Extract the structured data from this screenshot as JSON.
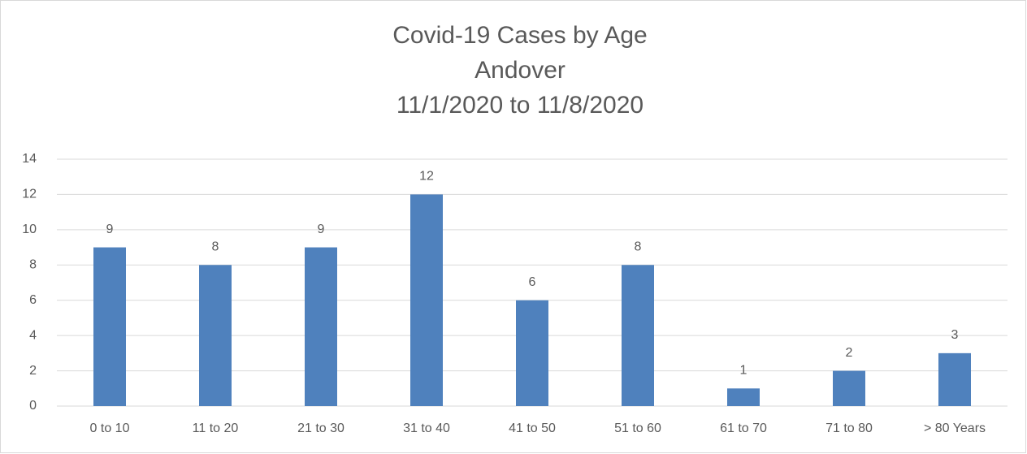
{
  "chart_data": {
    "type": "bar",
    "title": [
      "Covid-19 Cases by Age",
      "Andover",
      "11/1/2020 to 11/8/2020"
    ],
    "categories": [
      "0 to 10",
      "11 to 20",
      "21 to 30",
      "31 to 40",
      "41 to 50",
      "51 to 60",
      "61 to 70",
      "71 to 80",
      "> 80 Years"
    ],
    "values": [
      9,
      8,
      9,
      12,
      6,
      8,
      1,
      2,
      3
    ],
    "color": "#4f81bd",
    "ylim": [
      0,
      14
    ],
    "yticks": [
      0,
      2,
      4,
      6,
      8,
      10,
      12,
      14
    ],
    "grid": true
  }
}
